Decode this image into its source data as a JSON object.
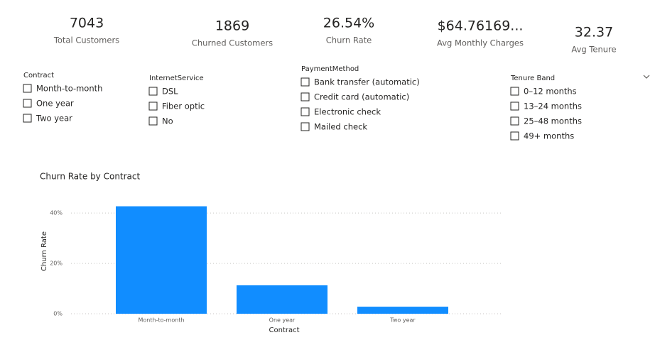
{
  "kpis": [
    {
      "value": "7043",
      "label": "Total Customers"
    },
    {
      "value": "1869",
      "label": "Churned Customers"
    },
    {
      "value": "26.54%",
      "label": "Churn Rate"
    },
    {
      "value": "$64.76169...",
      "label": "Avg Monthly Charges"
    },
    {
      "value": "32.37",
      "label": "Avg Tenure"
    }
  ],
  "slicers": [
    {
      "title": "Contract",
      "items": [
        "Month-to-month",
        "One year",
        "Two year"
      ]
    },
    {
      "title": "InternetService",
      "items": [
        "DSL",
        "Fiber optic",
        "No"
      ]
    },
    {
      "title": "PaymentMethod",
      "items": [
        "Bank transfer (automatic)",
        "Credit card (automatic)",
        "Electronic check",
        "Mailed check"
      ]
    },
    {
      "title": "Tenure Band",
      "items": [
        "0–12 months",
        "13–24 months",
        "25–48 months",
        "49+ months"
      ]
    }
  ],
  "chart_data": {
    "type": "bar",
    "title": "Churn Rate by Contract",
    "x_label": "Contract",
    "y_label": "Churn Rate",
    "categories": [
      "Month-to-month",
      "One year",
      "Two year"
    ],
    "values": [
      42.7,
      11.3,
      2.8
    ],
    "color": "#118dff",
    "ylim": [
      0,
      44
    ],
    "yticks": [
      {
        "value": 0,
        "label": "0%"
      },
      {
        "value": 20,
        "label": "20%"
      },
      {
        "value": 40,
        "label": "40%"
      }
    ],
    "grid": true
  }
}
